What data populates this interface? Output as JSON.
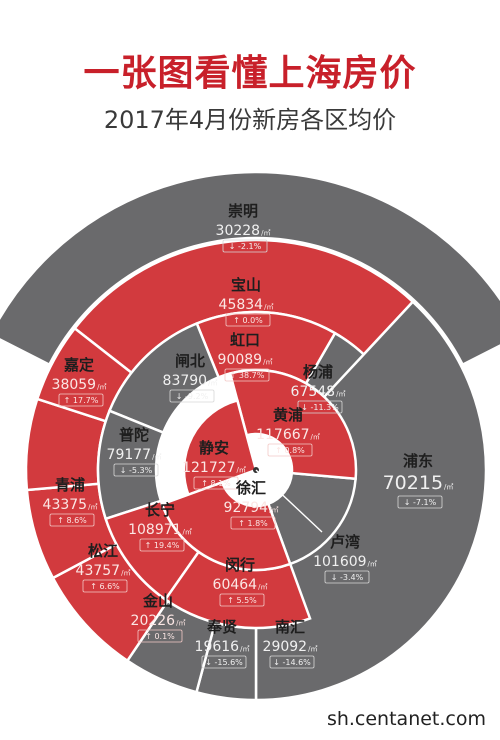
{
  "title": "一张图看懂上海房价",
  "subtitle": "2017年4月份新房各区均价",
  "source": "sh.centanet.com",
  "unit": "元/㎡",
  "colors": {
    "up": "#d23a3e",
    "down": "#6a6a6c",
    "stroke": "#ffffff"
  },
  "chart_data": {
    "type": "pie",
    "title": "2017年4月份新房各区均价",
    "categories": [
      "崇明",
      "宝山",
      "杨浦",
      "浦东",
      "卢湾",
      "南汇",
      "奉贤",
      "金山",
      "松江",
      "青浦",
      "嘉定",
      "虹口",
      "闸北",
      "普陀",
      "长宁",
      "闵行",
      "黄浦",
      "静安",
      "徐汇"
    ],
    "series": [
      {
        "name": "price",
        "values": [
          30228,
          45834,
          67548,
          70215,
          101609,
          29092,
          19616,
          20226,
          43757,
          43375,
          38059,
          90089,
          83790,
          79177,
          108971,
          60464,
          117667,
          121727,
          92794
        ]
      },
      {
        "name": "change",
        "values": [
          "-2.1%",
          "0.0%",
          "-11.3%",
          "-7.1%",
          "-3.4%",
          "-14.6%",
          "-15.6%",
          "0.1%",
          "6.6%",
          "8.6%",
          "17.7%",
          "38.7%",
          "-9.2%",
          "-5.3%",
          "19.4%",
          "5.5%",
          "0.8%",
          "8.1%",
          "1.8%"
        ]
      }
    ],
    "districts": [
      {
        "name": "崇明",
        "price": "30228",
        "change": "-2.1%",
        "trend": "down"
      },
      {
        "name": "宝山",
        "price": "45834",
        "change": "0.0%",
        "trend": "up"
      },
      {
        "name": "杨浦",
        "price": "67548",
        "change": "-11.3%",
        "trend": "down"
      },
      {
        "name": "浦东",
        "price": "70215",
        "change": "-7.1%",
        "trend": "down"
      },
      {
        "name": "卢湾",
        "price": "101609",
        "change": "-3.4%",
        "trend": "down"
      },
      {
        "name": "南汇",
        "price": "29092",
        "change": "-14.6%",
        "trend": "down"
      },
      {
        "name": "奉贤",
        "price": "19616",
        "change": "-15.6%",
        "trend": "down"
      },
      {
        "name": "金山",
        "price": "20226",
        "change": "0.1%",
        "trend": "up"
      },
      {
        "name": "松江",
        "price": "43757",
        "change": "6.6%",
        "trend": "up"
      },
      {
        "name": "青浦",
        "price": "43375",
        "change": "8.6%",
        "trend": "up"
      },
      {
        "name": "嘉定",
        "price": "38059",
        "change": "17.7%",
        "trend": "up"
      },
      {
        "name": "虹口",
        "price": "90089",
        "change": "38.7%",
        "trend": "up"
      },
      {
        "name": "闸北",
        "price": "83790",
        "change": "-9.2%",
        "trend": "down"
      },
      {
        "name": "普陀",
        "price": "79177",
        "change": "-5.3%",
        "trend": "down"
      },
      {
        "name": "长宁",
        "price": "108971",
        "change": "19.4%",
        "trend": "up"
      },
      {
        "name": "闵行",
        "price": "60464",
        "change": "5.5%",
        "trend": "up"
      },
      {
        "name": "黄浦",
        "price": "117667",
        "change": "0.8%",
        "trend": "up"
      },
      {
        "name": "静安",
        "price": "121727",
        "change": "8.1%",
        "trend": "up"
      },
      {
        "name": "徐汇",
        "price": "92794",
        "change": "1.8%",
        "trend": "up"
      }
    ]
  }
}
